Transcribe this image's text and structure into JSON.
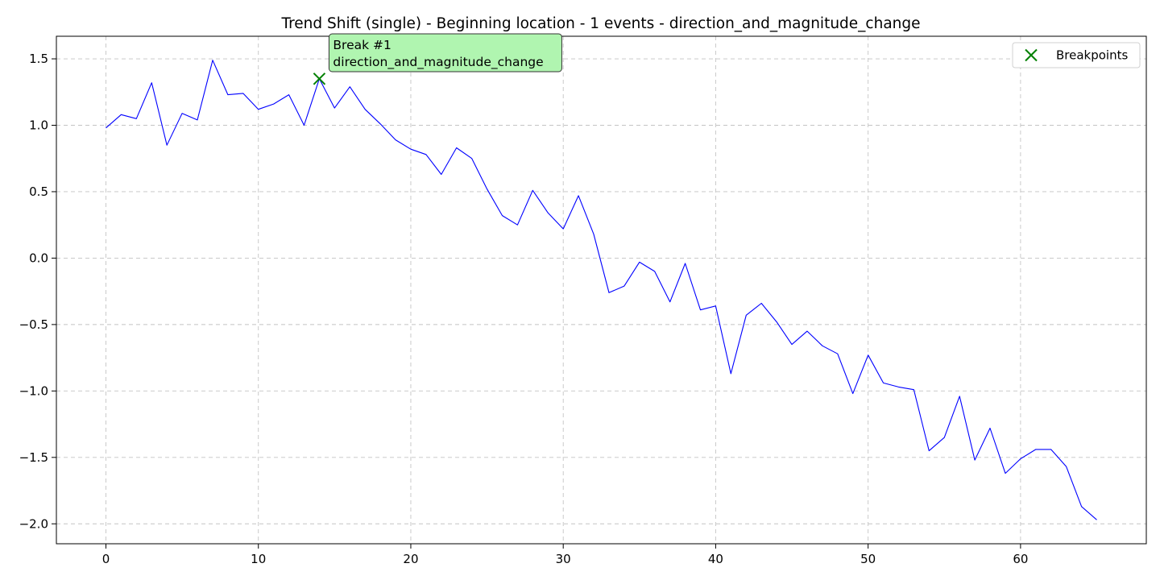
{
  "chart_data": {
    "type": "line",
    "title": "Trend Shift (single) - Beginning location - 1 events - direction_and_magnitude_change",
    "xlabel": "",
    "ylabel": "",
    "xlim": [
      -3.25,
      68.25
    ],
    "ylim": [
      -2.15,
      1.67
    ],
    "xticks": [
      0,
      10,
      20,
      30,
      40,
      50,
      60
    ],
    "yticks": [
      1.5,
      1.0,
      0.5,
      0.0,
      -0.5,
      -1.0,
      -1.5,
      -2.0
    ],
    "xtick_labels": [
      "0",
      "10",
      "20",
      "30",
      "40",
      "50",
      "60"
    ],
    "ytick_labels": [
      "1.5",
      "1.0",
      "0.5",
      "0.0",
      "−0.5",
      "−1.0",
      "−1.5",
      "−2.0"
    ],
    "grid": true,
    "series": [
      {
        "color": "#0000ff",
        "x": [
          0,
          1,
          2,
          3,
          4,
          5,
          6,
          7,
          8,
          9,
          10,
          11,
          12,
          13,
          14,
          15,
          16,
          17,
          18,
          19,
          20,
          21,
          22,
          23,
          24,
          25,
          26,
          27,
          28,
          29,
          30,
          31,
          32,
          33,
          34,
          35,
          36,
          37,
          38,
          39,
          40,
          41,
          42,
          43,
          44,
          45,
          46,
          47,
          48,
          49,
          50,
          51,
          52,
          53,
          54,
          55,
          56,
          57,
          58,
          59,
          60,
          61,
          62,
          63,
          64,
          65
        ],
        "y": [
          0.98,
          1.08,
          1.05,
          1.32,
          0.85,
          1.09,
          1.04,
          1.49,
          1.23,
          1.24,
          1.12,
          1.16,
          1.23,
          1.0,
          1.35,
          1.13,
          1.29,
          1.12,
          1.01,
          0.89,
          0.82,
          0.78,
          0.63,
          0.83,
          0.75,
          0.52,
          0.32,
          0.25,
          0.51,
          0.34,
          0.22,
          0.47,
          0.18,
          -0.26,
          -0.21,
          -0.03,
          -0.1,
          -0.33,
          -0.04,
          -0.39,
          -0.36,
          -0.87,
          -0.43,
          -0.34,
          -0.48,
          -0.65,
          -0.55,
          -0.66,
          -0.72,
          -1.02,
          -0.73,
          -0.94,
          -0.97,
          -0.99,
          -1.45,
          -1.35,
          -1.04,
          -1.52,
          -1.28,
          -1.62,
          -1.51,
          -1.44,
          -1.44,
          -1.57,
          -1.87,
          -1.97
        ]
      }
    ],
    "breakpoints": [
      {
        "name": "Breakpoints",
        "x": 14,
        "y": 1.35,
        "color": "#008000",
        "marker": "x"
      }
    ],
    "annotations": [
      {
        "lines": [
          "Break #1",
          "direction_and_magnitude_change"
        ],
        "x": 14,
        "y": 1.35,
        "background": "#b0f5b0"
      }
    ],
    "legend": {
      "position": "top-right",
      "entries": [
        "Breakpoints"
      ]
    }
  }
}
